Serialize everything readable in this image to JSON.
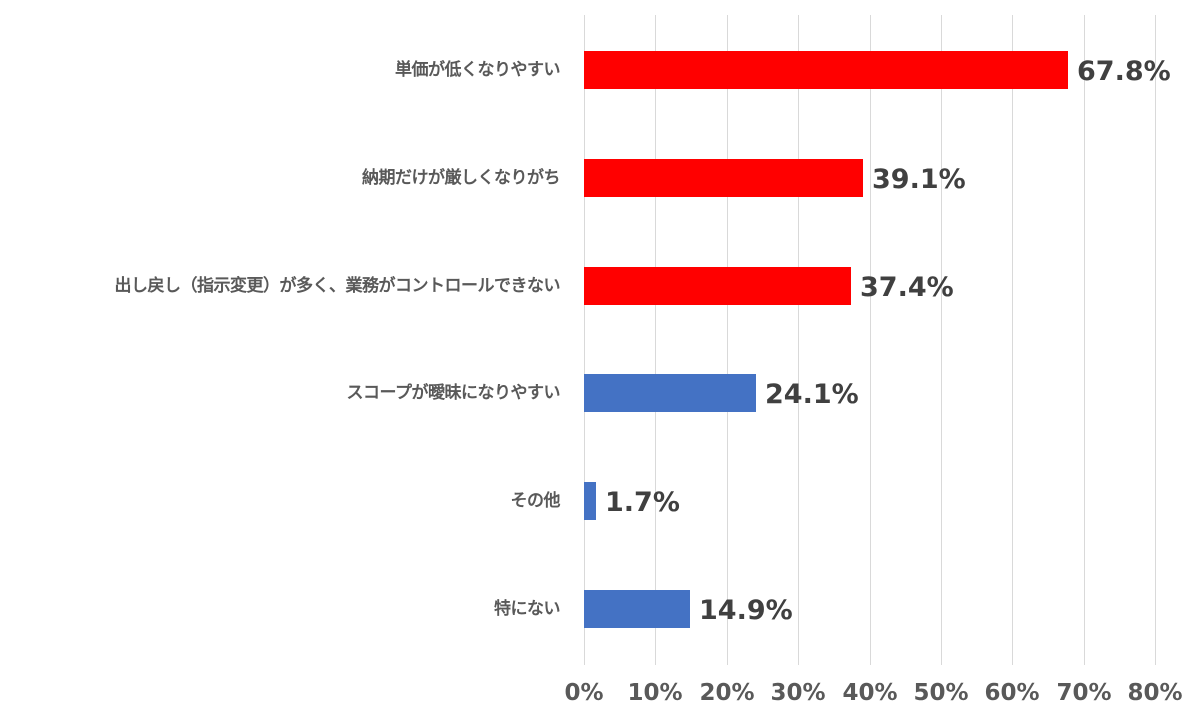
{
  "chart_data": {
    "type": "bar",
    "orientation": "horizontal",
    "title": "",
    "xlabel": "",
    "ylabel": "",
    "xlim": [
      0,
      80
    ],
    "grid": true,
    "legend": null,
    "categories": [
      "単価が低くなりやすい",
      "納期だけが厳しくなりがち",
      "出し戻し（指示変更）が多く、業務がコントロールできない",
      "スコープが曖昧になりやすい",
      "その他",
      "特にない"
    ],
    "values": [
      67.8,
      39.1,
      37.4,
      24.1,
      1.7,
      14.9
    ],
    "value_labels": [
      "67.8%",
      "39.1%",
      "37.4%",
      "24.1%",
      "1.7%",
      "14.9%"
    ],
    "bar_colors": [
      "#FF0000",
      "#FF0000",
      "#FF0000",
      "#4472C4",
      "#4472C4",
      "#4472C4"
    ],
    "x_ticks": [
      "0%",
      "10%",
      "20%",
      "30%",
      "40%",
      "50%",
      "60%",
      "70%",
      "80%"
    ]
  },
  "colors": {
    "highlight": "#FF0000",
    "normal": "#4472C4",
    "grid": "#D9D9D9",
    "label_text": "#595959",
    "value_text": "#404040"
  }
}
